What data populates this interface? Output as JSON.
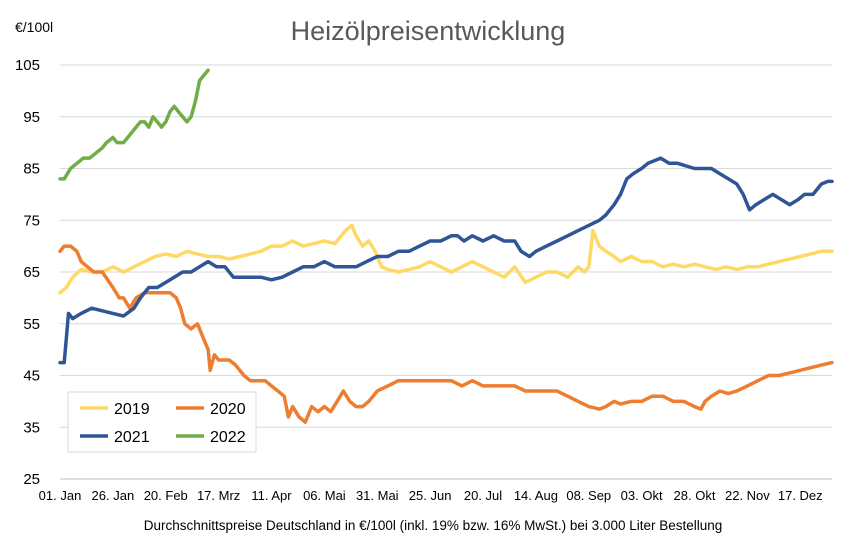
{
  "chart_data": {
    "type": "line",
    "title": "Heizölpreisentwicklung",
    "unit_label": "€/100l",
    "xlabel": "Durchschnittspreise Deutschland in €/100l (inkl. 19% bzw. 16%  MwSt.) bei 3.000 Liter Bestellung",
    "ylabel": "",
    "ylim": [
      25,
      105
    ],
    "yticks": [
      "105",
      "95",
      "85",
      "75",
      "65",
      "55",
      "45",
      "35",
      "25"
    ],
    "xlim": [
      0,
      365
    ],
    "x_unit": "day of year",
    "xticks": [
      {
        "day": 0,
        "label": "01. Jan"
      },
      {
        "day": 25,
        "label": "26. Jan"
      },
      {
        "day": 50,
        "label": "20. Feb"
      },
      {
        "day": 75,
        "label": "17. Mrz"
      },
      {
        "day": 100,
        "label": "11. Apr"
      },
      {
        "day": 125,
        "label": "06. Mai"
      },
      {
        "day": 150,
        "label": "31. Mai"
      },
      {
        "day": 175,
        "label": "25. Jun"
      },
      {
        "day": 200,
        "label": "20. Jul"
      },
      {
        "day": 225,
        "label": "14. Aug"
      },
      {
        "day": 250,
        "label": "08. Sep"
      },
      {
        "day": 275,
        "label": "03. Okt"
      },
      {
        "day": 300,
        "label": "28. Okt"
      },
      {
        "day": 325,
        "label": "22. Nov"
      },
      {
        "day": 350,
        "label": "17. Dez"
      }
    ],
    "grid": "horizontal",
    "legend_position": "bottom-left",
    "series": [
      {
        "name": "2019",
        "color": "#FFD966",
        "points": [
          [
            0,
            61
          ],
          [
            3,
            62
          ],
          [
            6,
            64
          ],
          [
            10,
            65.5
          ],
          [
            15,
            65
          ],
          [
            20,
            65
          ],
          [
            25,
            66
          ],
          [
            30,
            65
          ],
          [
            35,
            66
          ],
          [
            40,
            67
          ],
          [
            45,
            68
          ],
          [
            50,
            68.5
          ],
          [
            55,
            68
          ],
          [
            60,
            69
          ],
          [
            65,
            68.5
          ],
          [
            70,
            68
          ],
          [
            75,
            68
          ],
          [
            80,
            67.5
          ],
          [
            85,
            68
          ],
          [
            90,
            68.5
          ],
          [
            95,
            69
          ],
          [
            100,
            70
          ],
          [
            105,
            70
          ],
          [
            110,
            71
          ],
          [
            115,
            70
          ],
          [
            120,
            70.5
          ],
          [
            125,
            71
          ],
          [
            130,
            70.5
          ],
          [
            135,
            73
          ],
          [
            138,
            74
          ],
          [
            140,
            72
          ],
          [
            143,
            70
          ],
          [
            146,
            71
          ],
          [
            149,
            69
          ],
          [
            152,
            66
          ],
          [
            155,
            65.5
          ],
          [
            160,
            65
          ],
          [
            165,
            65.5
          ],
          [
            170,
            66
          ],
          [
            175,
            67
          ],
          [
            180,
            66
          ],
          [
            185,
            65
          ],
          [
            190,
            66
          ],
          [
            195,
            67
          ],
          [
            200,
            66
          ],
          [
            205,
            65
          ],
          [
            210,
            64
          ],
          [
            215,
            66
          ],
          [
            220,
            63
          ],
          [
            225,
            64
          ],
          [
            230,
            65
          ],
          [
            235,
            65
          ],
          [
            240,
            64
          ],
          [
            245,
            66
          ],
          [
            248,
            65
          ],
          [
            250,
            66
          ],
          [
            252,
            73
          ],
          [
            255,
            70
          ],
          [
            258,
            69
          ],
          [
            262,
            68
          ],
          [
            265,
            67
          ],
          [
            270,
            68
          ],
          [
            275,
            67
          ],
          [
            280,
            67
          ],
          [
            285,
            66
          ],
          [
            290,
            66.5
          ],
          [
            295,
            66
          ],
          [
            300,
            66.5
          ],
          [
            305,
            66
          ],
          [
            310,
            65.5
          ],
          [
            315,
            66
          ],
          [
            320,
            65.5
          ],
          [
            325,
            66
          ],
          [
            330,
            66
          ],
          [
            335,
            66.5
          ],
          [
            340,
            67
          ],
          [
            345,
            67.5
          ],
          [
            350,
            68
          ],
          [
            355,
            68.5
          ],
          [
            360,
            69
          ],
          [
            365,
            69
          ]
        ]
      },
      {
        "name": "2020",
        "color": "#ED7D31",
        "points": [
          [
            0,
            69
          ],
          [
            2,
            70
          ],
          [
            5,
            70
          ],
          [
            8,
            69
          ],
          [
            10,
            67
          ],
          [
            13,
            66
          ],
          [
            16,
            65
          ],
          [
            20,
            65
          ],
          [
            25,
            62
          ],
          [
            28,
            60
          ],
          [
            30,
            60
          ],
          [
            33,
            58
          ],
          [
            36,
            60
          ],
          [
            40,
            61
          ],
          [
            44,
            61
          ],
          [
            48,
            61
          ],
          [
            52,
            61
          ],
          [
            55,
            60
          ],
          [
            57,
            58
          ],
          [
            59,
            55
          ],
          [
            62,
            54
          ],
          [
            65,
            55
          ],
          [
            68,
            52
          ],
          [
            70,
            50
          ],
          [
            71,
            46
          ],
          [
            73,
            49
          ],
          [
            75,
            48
          ],
          [
            78,
            48
          ],
          [
            80,
            48
          ],
          [
            83,
            47
          ],
          [
            87,
            45
          ],
          [
            90,
            44
          ],
          [
            93,
            44
          ],
          [
            95,
            44
          ],
          [
            97,
            44
          ],
          [
            100,
            43
          ],
          [
            103,
            42
          ],
          [
            106,
            41
          ],
          [
            108,
            37
          ],
          [
            110,
            39
          ],
          [
            113,
            37
          ],
          [
            116,
            36
          ],
          [
            119,
            39
          ],
          [
            122,
            38
          ],
          [
            125,
            39
          ],
          [
            128,
            38
          ],
          [
            131,
            40
          ],
          [
            134,
            42
          ],
          [
            137,
            40
          ],
          [
            140,
            39
          ],
          [
            143,
            39
          ],
          [
            146,
            40
          ],
          [
            150,
            42
          ],
          [
            155,
            43
          ],
          [
            160,
            44
          ],
          [
            165,
            44
          ],
          [
            170,
            44
          ],
          [
            175,
            44
          ],
          [
            180,
            44
          ],
          [
            185,
            44
          ],
          [
            190,
            43
          ],
          [
            195,
            44
          ],
          [
            200,
            43
          ],
          [
            205,
            43
          ],
          [
            210,
            43
          ],
          [
            215,
            43
          ],
          [
            220,
            42
          ],
          [
            225,
            42
          ],
          [
            230,
            42
          ],
          [
            235,
            42
          ],
          [
            240,
            41
          ],
          [
            245,
            40
          ],
          [
            250,
            39
          ],
          [
            255,
            38.5
          ],
          [
            258,
            39
          ],
          [
            262,
            40
          ],
          [
            265,
            39.5
          ],
          [
            270,
            40
          ],
          [
            275,
            40
          ],
          [
            280,
            41
          ],
          [
            285,
            41
          ],
          [
            290,
            40
          ],
          [
            295,
            40
          ],
          [
            300,
            39
          ],
          [
            303,
            38.5
          ],
          [
            305,
            40
          ],
          [
            308,
            41
          ],
          [
            312,
            42
          ],
          [
            316,
            41.5
          ],
          [
            320,
            42
          ],
          [
            325,
            43
          ],
          [
            330,
            44
          ],
          [
            335,
            45
          ],
          [
            340,
            45
          ],
          [
            345,
            45.5
          ],
          [
            350,
            46
          ],
          [
            355,
            46.5
          ],
          [
            360,
            47
          ],
          [
            365,
            47.5
          ]
        ]
      },
      {
        "name": "2021",
        "color": "#2F5597",
        "points": [
          [
            0,
            47.5
          ],
          [
            2,
            47.5
          ],
          [
            4,
            57
          ],
          [
            6,
            56
          ],
          [
            10,
            57
          ],
          [
            15,
            58
          ],
          [
            20,
            57.5
          ],
          [
            25,
            57
          ],
          [
            30,
            56.5
          ],
          [
            35,
            58
          ],
          [
            38,
            60
          ],
          [
            42,
            62
          ],
          [
            46,
            62
          ],
          [
            50,
            63
          ],
          [
            54,
            64
          ],
          [
            58,
            65
          ],
          [
            62,
            65
          ],
          [
            66,
            66
          ],
          [
            70,
            67
          ],
          [
            74,
            66
          ],
          [
            78,
            66
          ],
          [
            82,
            64
          ],
          [
            86,
            64
          ],
          [
            90,
            64
          ],
          [
            95,
            64
          ],
          [
            100,
            63.5
          ],
          [
            105,
            64
          ],
          [
            110,
            65
          ],
          [
            115,
            66
          ],
          [
            120,
            66
          ],
          [
            125,
            67
          ],
          [
            130,
            66
          ],
          [
            135,
            66
          ],
          [
            140,
            66
          ],
          [
            145,
            67
          ],
          [
            150,
            68
          ],
          [
            155,
            68
          ],
          [
            160,
            69
          ],
          [
            165,
            69
          ],
          [
            170,
            70
          ],
          [
            175,
            71
          ],
          [
            180,
            71
          ],
          [
            185,
            72
          ],
          [
            188,
            72
          ],
          [
            191,
            71
          ],
          [
            195,
            72
          ],
          [
            200,
            71
          ],
          [
            205,
            72
          ],
          [
            210,
            71
          ],
          [
            215,
            71
          ],
          [
            218,
            69
          ],
          [
            222,
            68
          ],
          [
            225,
            69
          ],
          [
            230,
            70
          ],
          [
            235,
            71
          ],
          [
            240,
            72
          ],
          [
            245,
            73
          ],
          [
            250,
            74
          ],
          [
            255,
            75
          ],
          [
            258,
            76
          ],
          [
            262,
            78
          ],
          [
            265,
            80
          ],
          [
            268,
            83
          ],
          [
            271,
            84
          ],
          [
            275,
            85
          ],
          [
            278,
            86
          ],
          [
            281,
            86.5
          ],
          [
            284,
            87
          ],
          [
            288,
            86
          ],
          [
            292,
            86
          ],
          [
            296,
            85.5
          ],
          [
            300,
            85
          ],
          [
            304,
            85
          ],
          [
            308,
            85
          ],
          [
            312,
            84
          ],
          [
            316,
            83
          ],
          [
            320,
            82
          ],
          [
            323,
            80
          ],
          [
            326,
            77
          ],
          [
            329,
            78
          ],
          [
            333,
            79
          ],
          [
            337,
            80
          ],
          [
            341,
            79
          ],
          [
            345,
            78
          ],
          [
            349,
            79
          ],
          [
            352,
            80
          ],
          [
            356,
            80
          ],
          [
            360,
            82
          ],
          [
            363,
            82.5
          ],
          [
            365,
            82.5
          ]
        ]
      },
      {
        "name": "2022",
        "color": "#70AD47",
        "points": [
          [
            0,
            83
          ],
          [
            2,
            83
          ],
          [
            5,
            85
          ],
          [
            8,
            86
          ],
          [
            11,
            87
          ],
          [
            14,
            87
          ],
          [
            17,
            88
          ],
          [
            20,
            89
          ],
          [
            22,
            90
          ],
          [
            25,
            91
          ],
          [
            27,
            90
          ],
          [
            30,
            90
          ],
          [
            32,
            91
          ],
          [
            34,
            92
          ],
          [
            36,
            93
          ],
          [
            38,
            94
          ],
          [
            40,
            94
          ],
          [
            42,
            93
          ],
          [
            44,
            95
          ],
          [
            46,
            94
          ],
          [
            48,
            93
          ],
          [
            50,
            94
          ],
          [
            52,
            96
          ],
          [
            54,
            97
          ],
          [
            56,
            96
          ],
          [
            58,
            95
          ],
          [
            60,
            94
          ],
          [
            62,
            95
          ],
          [
            64,
            98
          ],
          [
            66,
            102
          ],
          [
            68,
            103
          ],
          [
            70,
            104
          ]
        ]
      }
    ]
  }
}
